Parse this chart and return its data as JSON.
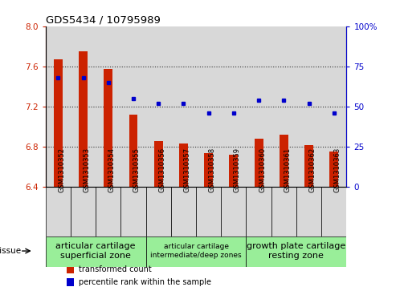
{
  "title": "GDS5434 / 10795989",
  "samples": [
    "GSM1310352",
    "GSM1310353",
    "GSM1310354",
    "GSM1310355",
    "GSM1310356",
    "GSM1310357",
    "GSM1310358",
    "GSM1310359",
    "GSM1310360",
    "GSM1310361",
    "GSM1310362",
    "GSM1310363"
  ],
  "transformed_count": [
    7.67,
    7.75,
    7.57,
    7.12,
    6.85,
    6.83,
    6.73,
    6.72,
    6.88,
    6.92,
    6.81,
    6.75
  ],
  "percentile_rank": [
    68,
    68,
    65,
    55,
    52,
    52,
    46,
    46,
    54,
    54,
    52,
    46
  ],
  "ylim_left": [
    6.4,
    8.0
  ],
  "ylim_right": [
    0,
    100
  ],
  "yticks_left": [
    6.4,
    6.8,
    7.2,
    7.6,
    8.0
  ],
  "ytick_labels_right": [
    "0",
    "25",
    "50",
    "75",
    "100%"
  ],
  "yticks_right": [
    0,
    25,
    50,
    75,
    100
  ],
  "bar_color": "#cc2200",
  "dot_color": "#0000cc",
  "bar_width": 0.35,
  "tissue_groups": [
    {
      "label": "articular cartilage\nsuperficial zone",
      "start": 0,
      "end": 3,
      "color": "#99ee99",
      "fontsize": 8
    },
    {
      "label": "articular cartilage\nintermediate/deep zones",
      "start": 4,
      "end": 7,
      "color": "#99ee99",
      "fontsize": 6.5
    },
    {
      "label": "growth plate cartilage\nresting zone",
      "start": 8,
      "end": 11,
      "color": "#99ee99",
      "fontsize": 8
    }
  ],
  "legend_items": [
    {
      "color": "#cc2200",
      "label": "transformed count"
    },
    {
      "color": "#0000cc",
      "label": "percentile rank within the sample"
    }
  ],
  "tissue_label": "tissue",
  "grid_color": "#333333",
  "col_bg": "#d8d8d8",
  "plot_bg": "#ffffff"
}
